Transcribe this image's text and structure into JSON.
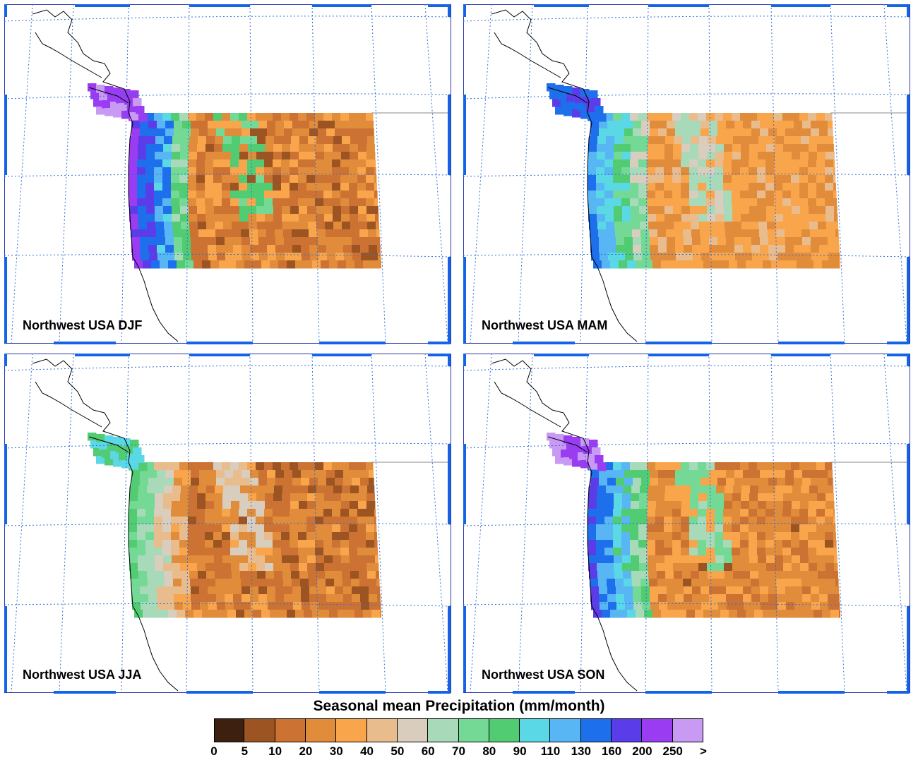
{
  "panels": [
    {
      "id": "djf",
      "title": "Northwest USA DJF"
    },
    {
      "id": "mam",
      "title": "Northwest USA MAM"
    },
    {
      "id": "jja",
      "title": "Northwest USA JJA"
    },
    {
      "id": "son",
      "title": "Northwest USA SON"
    }
  ],
  "legend": {
    "title": "Seasonal mean Precipitation (mm/month)",
    "colors": [
      "#3d2010",
      "#9c5422",
      "#cc7232",
      "#e18c3a",
      "#f8a54c",
      "#e9bc8e",
      "#d9cdbe",
      "#a8d9b8",
      "#74d995",
      "#52cc72",
      "#5ad8e6",
      "#58b6f5",
      "#1d6fec",
      "#5a3de8",
      "#9a3cf2",
      "#c99af4"
    ],
    "labels": [
      "0",
      "5",
      "10",
      "20",
      "30",
      "40",
      "50",
      "60",
      "70",
      "80",
      "90",
      "110",
      "130",
      "160",
      "200",
      "250",
      ">"
    ]
  }
}
